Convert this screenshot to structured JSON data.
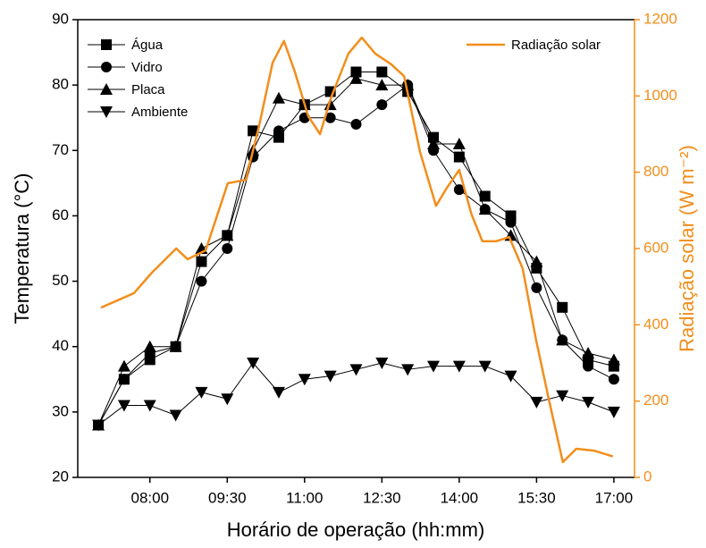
{
  "chart_data": {
    "type": "line",
    "xlabel": "Horário de operação (hh:mm)",
    "ylabel": "Temperatura (°C)",
    "y2label": "Radiação solar (W m⁻²)",
    "xlim": [
      6.6,
      17.4
    ],
    "xticks": [
      {
        "value": 8,
        "label": "08:00"
      },
      {
        "value": 9.5,
        "label": "09:30"
      },
      {
        "value": 11,
        "label": "11:00"
      },
      {
        "value": 12.5,
        "label": "12:30"
      },
      {
        "value": 14,
        "label": "14:00"
      },
      {
        "value": 15.5,
        "label": "15:30"
      },
      {
        "value": 17,
        "label": "17:00"
      }
    ],
    "ylim": [
      20,
      90
    ],
    "yticks": [
      20,
      30,
      40,
      50,
      60,
      70,
      80,
      90
    ],
    "y2lim": [
      0,
      1200
    ],
    "y2ticks": [
      0,
      200,
      400,
      600,
      800,
      1000,
      1200
    ],
    "y2color": "#f28e1c",
    "x": [
      7,
      7.5,
      8,
      8.5,
      9,
      9.5,
      10,
      10.5,
      11,
      11.5,
      12,
      12.5,
      13,
      13.5,
      14,
      14.5,
      15,
      15.5,
      16,
      16.5,
      17
    ],
    "series": [
      {
        "name": "Água",
        "color": "#000000",
        "marker": "square",
        "values": [
          28,
          35,
          38,
          40,
          53,
          57,
          73,
          72,
          77,
          79,
          82,
          82,
          79,
          72,
          69,
          63,
          60,
          52,
          46,
          38,
          37
        ]
      },
      {
        "name": "Vidro",
        "color": "#000000",
        "marker": "circle",
        "values": [
          28,
          35,
          39,
          40,
          50,
          55,
          69,
          73,
          75,
          75,
          74,
          77,
          80,
          70,
          64,
          61,
          59,
          49,
          41,
          37,
          35
        ]
      },
      {
        "name": "Placa",
        "color": "#000000",
        "marker": "triangle-up",
        "values": [
          28,
          37,
          40,
          40,
          55,
          57,
          70,
          78,
          77,
          77,
          81,
          80,
          80,
          71,
          71,
          61,
          57,
          53,
          41,
          39,
          38
        ]
      },
      {
        "name": "Ambiente",
        "color": "#000000",
        "marker": "triangle-down",
        "values": [
          28,
          31,
          31,
          29.5,
          33,
          32,
          37.5,
          33,
          35,
          35.5,
          36.5,
          37.5,
          36.5,
          37,
          37,
          37,
          35.5,
          31.5,
          32.5,
          31.5,
          30
        ]
      },
      {
        "name": "Radiação solar",
        "color": "#f28e1c",
        "axis": "y2",
        "x": [
          7.05,
          7.69,
          8.04,
          8.51,
          8.73,
          9.08,
          9.51,
          9.86,
          10.12,
          10.38,
          10.6,
          10.81,
          11.07,
          11.3,
          11.51,
          11.85,
          12.11,
          12.37,
          12.68,
          12.93,
          13.24,
          13.55,
          13.76,
          14,
          14.24,
          14.45,
          14.71,
          14.97,
          15.23,
          15.49,
          15.75,
          16.01,
          16.27,
          16.62,
          16.98
        ],
        "values": [
          445,
          483,
          537,
          600,
          572,
          595,
          771,
          780,
          923,
          1087,
          1144,
          1064,
          947,
          900,
          994,
          1111,
          1153,
          1111,
          1083,
          1052,
          853,
          712,
          759,
          806,
          689,
          619,
          619,
          630,
          548,
          361,
          197,
          40,
          75,
          70,
          55
        ]
      }
    ]
  }
}
